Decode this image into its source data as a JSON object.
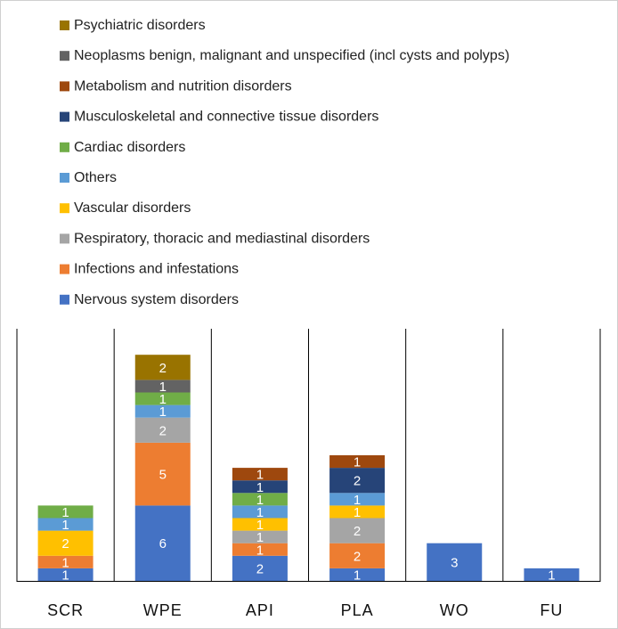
{
  "chart_data": {
    "type": "bar",
    "stacked": true,
    "categories": [
      "SCR",
      "WPE",
      "API",
      "PLA",
      "WO",
      "FU"
    ],
    "series": [
      {
        "name": "Nervous system disorders",
        "color": "#4472C4",
        "values": [
          1,
          6,
          2,
          1,
          3,
          1
        ]
      },
      {
        "name": "Infections and infestations",
        "color": "#ED7D31",
        "values": [
          1,
          5,
          1,
          2,
          0,
          0
        ]
      },
      {
        "name": "Respiratory, thoracic and mediastinal disorders",
        "color": "#A5A5A5",
        "values": [
          0,
          2,
          1,
          2,
          0,
          0
        ]
      },
      {
        "name": "Vascular disorders",
        "color": "#FFC000",
        "values": [
          2,
          0,
          1,
          1,
          0,
          0
        ]
      },
      {
        "name": "Others",
        "color": "#5B9BD5",
        "values": [
          1,
          1,
          1,
          1,
          0,
          0
        ]
      },
      {
        "name": "Cardiac disorders",
        "color": "#70AD47",
        "values": [
          1,
          1,
          1,
          0,
          0,
          0
        ]
      },
      {
        "name": "Musculoskeletal and connective tissue disorders",
        "color": "#264478",
        "values": [
          0,
          0,
          1,
          2,
          0,
          0
        ]
      },
      {
        "name": "Metabolism and nutrition disorders",
        "color": "#9E480E",
        "values": [
          0,
          0,
          1,
          1,
          0,
          0
        ]
      },
      {
        "name": "Neoplasms benign, malignant and unspecified (incl cysts and polyps)",
        "color": "#636363",
        "values": [
          0,
          1,
          0,
          0,
          0,
          0
        ]
      },
      {
        "name": "Psychiatric disorders",
        "color": "#997300",
        "values": [
          0,
          2,
          0,
          0,
          0,
          0
        ]
      }
    ],
    "ylim": [
      0,
      20
    ],
    "grid": false,
    "legend": "top-left",
    "data_labels": true
  }
}
